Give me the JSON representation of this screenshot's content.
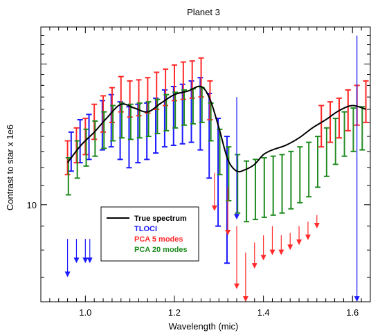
{
  "chart_data": {
    "type": "line",
    "title": "Planet 3",
    "xlabel": "Wavelength (mic)",
    "ylabel": "Contrast to star x 1e6",
    "xlim": [
      0.9,
      1.64
    ],
    "ylim": [
      6.2,
      24.0
    ],
    "yscale": "log",
    "x_ticks": [
      1.0,
      1.2,
      1.4,
      1.6
    ],
    "x_tick_labels": [
      "1.0",
      "1.2",
      "1.4",
      "1.6"
    ],
    "y_ticks": [
      10
    ],
    "y_tick_labels": [
      "10"
    ],
    "grid": false,
    "legend_position": "bottom-left",
    "legend": [
      {
        "label": "True spectrum",
        "color": "#000000"
      },
      {
        "label": "TLOCI",
        "color": "#1a1aff"
      },
      {
        "label": "PCA 5 modes",
        "color": "#ff2a2a"
      },
      {
        "label": "PCA 20 modes",
        "color": "#1f8a1f"
      }
    ],
    "true_spectrum": {
      "name": "True spectrum",
      "color": "#000000",
      "x": [
        0.96,
        0.99,
        1.02,
        1.05,
        1.08,
        1.11,
        1.14,
        1.17,
        1.2,
        1.23,
        1.26,
        1.28,
        1.3,
        1.32,
        1.34,
        1.36,
        1.38,
        1.4,
        1.42,
        1.45,
        1.48,
        1.51,
        1.54,
        1.57,
        1.6,
        1.63
      ],
      "y": [
        12.3,
        13.4,
        14.3,
        15.4,
        16.4,
        16.1,
        15.8,
        16.5,
        17.2,
        17.5,
        17.9,
        16.8,
        14.6,
        12.5,
        11.8,
        11.9,
        12.2,
        12.8,
        13.1,
        13.4,
        13.9,
        14.6,
        15.2,
        15.9,
        16.3,
        16.0
      ]
    },
    "series": [
      {
        "name": "TLOCI",
        "color": "#1a1aff",
        "x": [
          0.97,
          0.99,
          1.01,
          1.04,
          1.06,
          1.08,
          1.1,
          1.12,
          1.14,
          1.16,
          1.18,
          1.2,
          1.22,
          1.24,
          1.26,
          1.28,
          1.3,
          1.32
        ],
        "y": [
          13.4,
          14.2,
          14.6,
          15.6,
          16.1,
          15.5,
          15.1,
          15.3,
          15.4,
          15.8,
          16.4,
          16.7,
          16.9,
          17.2,
          17.4,
          16.0,
          13.9,
          12.5
        ],
        "err_lo": [
          1.6,
          1.9,
          2.1,
          2.5,
          2.8,
          3.0,
          3.1,
          3.0,
          2.9,
          2.9,
          3.1,
          3.3,
          3.4,
          3.6,
          4.3,
          4.6,
          4.9,
          5.0
        ],
        "err_hi": [
          0.9,
          1.0,
          1.0,
          1.1,
          1.1,
          1.1,
          1.1,
          1.1,
          1.1,
          1.1,
          1.2,
          1.2,
          1.2,
          1.2,
          1.3,
          1.3,
          1.4,
          1.5
        ]
      },
      {
        "name": "PCA 5 modes",
        "color": "#ff2a2a",
        "x": [
          0.96,
          0.98,
          1.0,
          1.02,
          1.04,
          1.06,
          1.08,
          1.1,
          1.12,
          1.14,
          1.16,
          1.18,
          1.2,
          1.22,
          1.24,
          1.26,
          1.28,
          1.53,
          1.55,
          1.57,
          1.59,
          1.61,
          1.63
        ],
        "y": [
          12.7,
          13.5,
          14.1,
          15.2,
          15.8,
          16.5,
          17.4,
          17.0,
          17.1,
          17.3,
          17.7,
          18.0,
          18.4,
          18.6,
          18.7,
          18.9,
          16.9,
          14.9,
          15.2,
          15.5,
          16.1,
          16.5,
          16.8
        ],
        "err_lo": [
          1.1,
          1.2,
          1.3,
          1.4,
          1.5,
          1.5,
          1.6,
          1.6,
          1.6,
          1.6,
          1.7,
          1.7,
          1.7,
          1.8,
          1.8,
          1.9,
          1.7,
          1.6,
          1.6,
          1.6,
          1.7,
          1.7,
          1.8
        ],
        "err_hi": [
          1.0,
          1.1,
          1.2,
          1.2,
          1.3,
          1.3,
          1.4,
          1.4,
          1.4,
          1.4,
          1.5,
          1.5,
          1.5,
          1.6,
          1.6,
          1.7,
          1.5,
          1.4,
          1.4,
          1.4,
          1.5,
          1.5,
          1.6
        ]
      },
      {
        "name": "PCA 20 modes",
        "color": "#1f8a1f",
        "x": [
          0.96,
          0.98,
          1.0,
          1.02,
          1.04,
          1.06,
          1.08,
          1.1,
          1.12,
          1.14,
          1.16,
          1.18,
          1.2,
          1.22,
          1.24,
          1.26,
          1.28,
          1.3,
          1.32,
          1.34,
          1.36,
          1.38,
          1.4,
          1.42,
          1.44,
          1.46,
          1.48,
          1.5,
          1.52,
          1.54,
          1.56,
          1.58,
          1.6,
          1.62
        ],
        "y": [
          11.6,
          12.6,
          13.4,
          14.0,
          14.6,
          15.1,
          15.3,
          15.2,
          15.3,
          15.4,
          15.6,
          15.9,
          16.1,
          16.3,
          16.4,
          16.5,
          15.2,
          13.2,
          11.9,
          11.4,
          11.0,
          11.1,
          11.2,
          11.3,
          11.4,
          11.6,
          11.9,
          12.2,
          12.6,
          13.2,
          13.9,
          14.4,
          14.7,
          14.8
        ],
        "err_lo": [
          1.1,
          1.2,
          1.3,
          1.3,
          1.4,
          1.4,
          1.4,
          1.4,
          1.4,
          1.4,
          1.4,
          1.5,
          1.5,
          1.5,
          1.5,
          1.5,
          1.5,
          1.6,
          1.7,
          1.8,
          1.8,
          1.8,
          1.8,
          1.8,
          1.8,
          1.8,
          1.8,
          1.8,
          1.7,
          1.7,
          1.7,
          1.7,
          1.7,
          1.7
        ],
        "err_hi": [
          1.0,
          1.1,
          1.1,
          1.1,
          1.2,
          1.2,
          1.2,
          1.2,
          1.2,
          1.2,
          1.2,
          1.3,
          1.3,
          1.3,
          1.3,
          1.3,
          1.3,
          1.3,
          1.4,
          1.4,
          1.4,
          1.4,
          1.4,
          1.4,
          1.4,
          1.4,
          1.4,
          1.4,
          1.4,
          1.4,
          1.4,
          1.4,
          1.4,
          1.4
        ]
      }
    ],
    "upper_limits": [
      {
        "name": "TLOCI",
        "color": "#1a1aff",
        "x": [
          0.96,
          0.98,
          1.0,
          1.01,
          1.34,
          1.61
        ],
        "y_top": [
          8.45,
          8.45,
          8.45,
          8.45,
          17.0,
          23.0
        ],
        "y_bottom": [
          7.0,
          7.5,
          7.5,
          7.5,
          9.3,
          6.2
        ]
      },
      {
        "name": "PCA 5 modes",
        "color": "#ff2a2a",
        "x": [
          1.29,
          1.32,
          1.34,
          1.36,
          1.38,
          1.4,
          1.42,
          1.44,
          1.46,
          1.48,
          1.5,
          1.52
        ],
        "y_top": [
          11.7,
          10.9,
          9.0,
          7.9,
          8.3,
          8.6,
          9.0,
          8.6,
          8.7,
          9.0,
          9.2,
          9.5
        ],
        "y_bottom": [
          9.7,
          8.6,
          6.6,
          6.2,
          7.3,
          7.6,
          7.8,
          7.8,
          8.0,
          8.2,
          8.4,
          8.9
        ]
      }
    ]
  }
}
